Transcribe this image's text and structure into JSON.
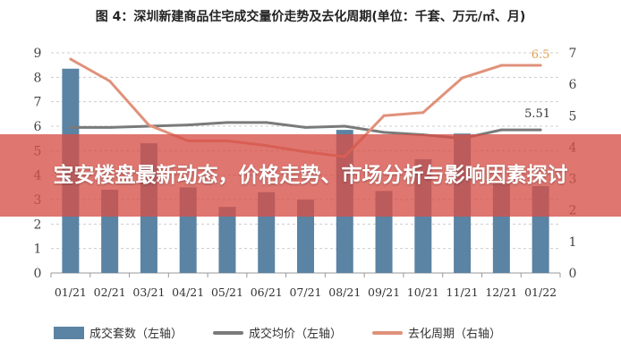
{
  "chart_data": {
    "type": "bar",
    "title": "图 4：深圳新建商品住宅成交量价走势及去化周期(单位：千套、万元/㎡、月)",
    "categories": [
      "01/21",
      "02/21",
      "03/21",
      "04/21",
      "05/21",
      "06/21",
      "07/21",
      "08/21",
      "09/21",
      "10/21",
      "11/21",
      "12/21",
      "01/22"
    ],
    "left_axis": {
      "ylim": [
        0,
        9
      ],
      "ticks": [
        0,
        1,
        2,
        3,
        4,
        5,
        6,
        7,
        8,
        9
      ]
    },
    "right_axis": {
      "ylim": [
        0,
        7
      ],
      "ticks": [
        0,
        1,
        2,
        3,
        4,
        5,
        6,
        7
      ]
    },
    "grid": "horizontal dashed",
    "legend_placement": "bottom",
    "series": [
      {
        "name": "成交套数（左轴）",
        "type": "bar",
        "axis": "left",
        "color": "#5b83a3",
        "values": [
          8.35,
          3.4,
          5.3,
          3.5,
          2.7,
          3.3,
          3.0,
          5.85,
          3.35,
          4.65,
          5.7,
          3.65,
          3.55
        ]
      },
      {
        "name": "成交均价（左轴）",
        "type": "line",
        "axis": "left",
        "color": "#7a7a7a",
        "values": [
          5.95,
          5.95,
          6.0,
          6.05,
          6.15,
          6.15,
          5.95,
          6.0,
          5.75,
          5.65,
          5.5,
          5.85,
          5.85
        ]
      },
      {
        "name": "去化周期（右轴）",
        "type": "line",
        "axis": "right",
        "color": "#e0917a",
        "values": [
          6.8,
          6.1,
          4.7,
          4.2,
          4.2,
          4.05,
          3.85,
          3.7,
          5.0,
          5.1,
          6.2,
          6.6,
          6.6
        ]
      }
    ],
    "annotations": [
      {
        "text": "6.5",
        "series": "去化周期（右轴）",
        "color": "#e0a050"
      },
      {
        "text": "5.51",
        "series": "成交均价（左轴）",
        "color": "#333333"
      }
    ]
  },
  "overlay": {
    "headline": "宝安楼盘最新动态，价格走势、市场分析与影响因素探讨",
    "color": "#d65048"
  }
}
